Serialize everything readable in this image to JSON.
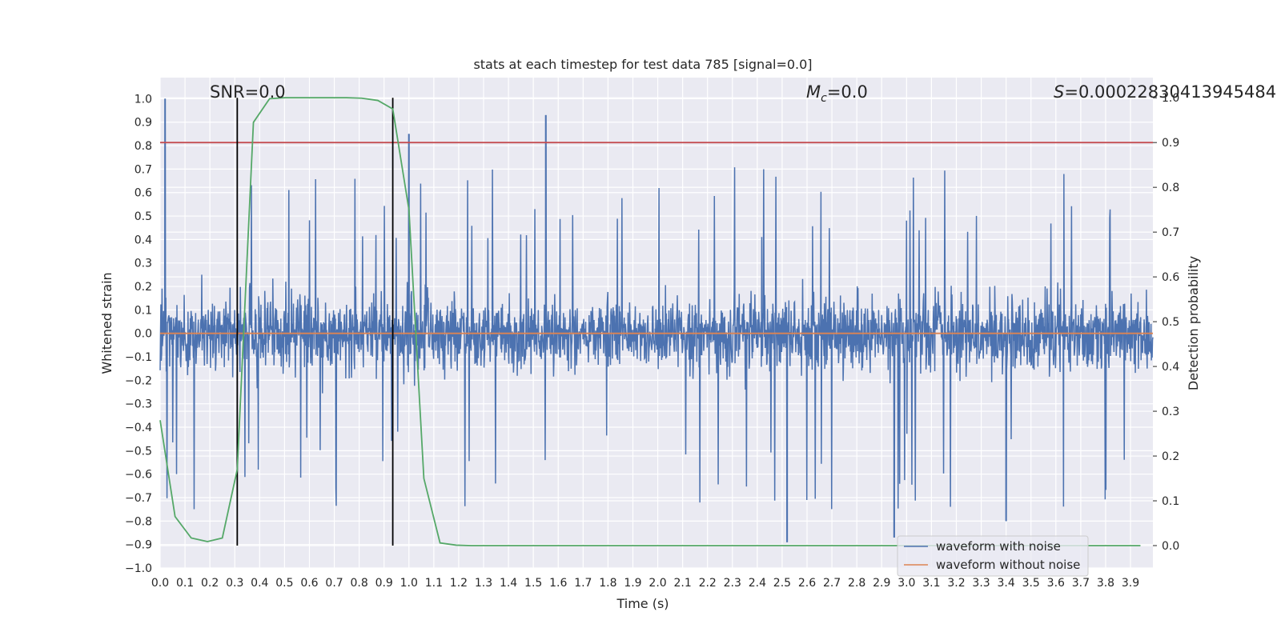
{
  "chart_data": {
    "type": "line",
    "title": "stats at each timestep for test data 785 [signal=0.0]",
    "xlabel": "Time (s)",
    "ylabel": "Whitened strain",
    "ylabel_right": "Detection probability",
    "xlim": [
      0.0,
      3.99
    ],
    "ylim": [
      -1.0,
      1.09
    ],
    "ylim_right": [
      -0.05,
      1.045
    ],
    "x_ticks": [
      "0.0",
      "0.1",
      "0.2",
      "0.3",
      "0.4",
      "0.5",
      "0.6",
      "0.7",
      "0.8",
      "0.9",
      "1.0",
      "1.1",
      "1.2",
      "1.3",
      "1.4",
      "1.5",
      "1.6",
      "1.7",
      "1.8",
      "1.9",
      "2.0",
      "2.1",
      "2.2",
      "2.3",
      "2.4",
      "2.5",
      "2.6",
      "2.7",
      "2.8",
      "2.9",
      "3.0",
      "3.1",
      "3.2",
      "3.3",
      "3.4",
      "3.5",
      "3.6",
      "3.7",
      "3.8",
      "3.9"
    ],
    "y_ticks": [
      "-1.0",
      "-0.9",
      "-0.8",
      "-0.7",
      "-0.6",
      "-0.5",
      "-0.4",
      "-0.3",
      "-0.2",
      "-0.1",
      "0.0",
      "0.1",
      "0.2",
      "0.3",
      "0.4",
      "0.5",
      "0.6",
      "0.7",
      "0.8",
      "0.9",
      "1.0"
    ],
    "y_ticks_right": [
      "0.0",
      "0.1",
      "0.2",
      "0.3",
      "0.4",
      "0.5",
      "0.6",
      "0.7",
      "0.8",
      "0.9",
      "1.0"
    ],
    "annotations": {
      "snr": "SNR=0.0",
      "mc_symbol": "M",
      "mc_subscript": "c",
      "mc_value": "=0.0",
      "s_symbol": "S",
      "s_value": "=0.00022830413945484"
    },
    "threshold_right": 0.9,
    "vertical_lines": [
      0.31,
      0.935
    ],
    "series": [
      {
        "name": "waveform with noise",
        "color": "#4c72b0",
        "generated": "noise, amplitude ~0.3, peaks up to 1.0 / -0.9",
        "peaks": [
          {
            "x": 0.02,
            "y": 1.0
          },
          {
            "x": 1.55,
            "y": 0.93
          },
          {
            "x": 1.0,
            "y": 0.85
          },
          {
            "x": 2.52,
            "y": -0.89
          },
          {
            "x": 2.95,
            "y": -0.87
          },
          {
            "x": 3.4,
            "y": -0.8
          }
        ]
      },
      {
        "name": "waveform without noise",
        "color": "#dd8452",
        "y_constant": 0.0
      },
      {
        "name": "detection probability",
        "color": "#55a868",
        "axis": "right",
        "x": [
          0.0,
          0.06,
          0.125,
          0.19,
          0.25,
          0.31,
          0.375,
          0.44,
          0.5,
          0.56,
          0.625,
          0.69,
          0.75,
          0.81,
          0.875,
          0.935,
          1.0,
          1.06,
          1.125,
          1.19,
          1.25,
          1.5,
          2.0,
          2.5,
          3.0,
          3.5,
          3.94
        ],
        "y": [
          0.28,
          0.065,
          0.017,
          0.009,
          0.017,
          0.17,
          0.945,
          0.998,
          1.0,
          1.0,
          1.0,
          1.0,
          1.0,
          0.999,
          0.994,
          0.975,
          0.75,
          0.15,
          0.006,
          0.001,
          0.0,
          0.0,
          0.0,
          0.0,
          0.0,
          0.0,
          0.0
        ]
      }
    ],
    "legend": {
      "placement": "lower-right",
      "entries": [
        {
          "label": "waveform with noise",
          "color": "#4c72b0"
        },
        {
          "label": "waveform without noise",
          "color": "#dd8452"
        }
      ]
    },
    "colors": {
      "axes_bg": "#eaeaf2",
      "grid": "#ffffff",
      "threshold": "#c44e52",
      "vline": "#000000"
    }
  }
}
